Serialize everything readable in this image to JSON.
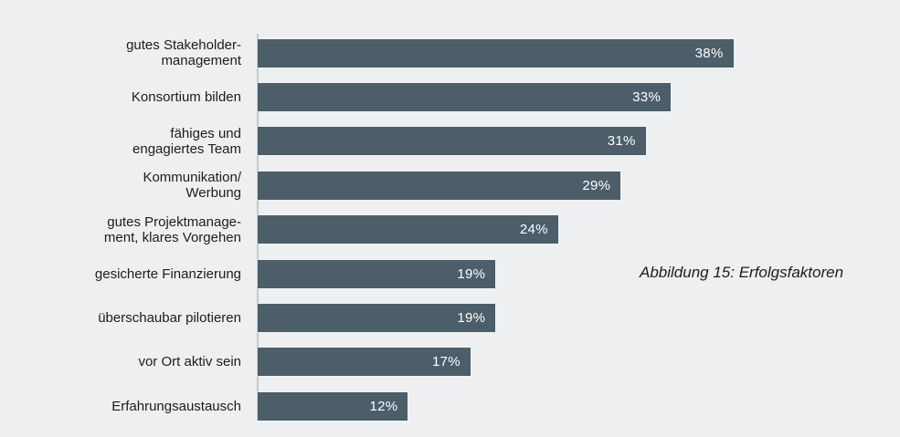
{
  "chart_data": {
    "type": "bar",
    "orientation": "horizontal",
    "caption": "Abbildung 15: Erfolgsfaktoren",
    "categories": [
      "gutes Stakeholder-\nmanagement",
      "Konsortium bilden",
      "fähiges und\nengagiertes Team",
      "Kommunikation/\nWerbung",
      "gutes Projektmanage-\nment, klares Vorgehen",
      "gesicherte Finanzierung",
      "überschaubar pilotieren",
      "vor Ort aktiv sein",
      "Erfahrungsaustausch"
    ],
    "values": [
      38,
      33,
      31,
      29,
      24,
      19,
      19,
      17,
      12
    ],
    "value_labels": [
      "38%",
      "33%",
      "31%",
      "29%",
      "24%",
      "19%",
      "19%",
      "17%",
      "12%"
    ],
    "unit": "%",
    "xlim": [
      0,
      40
    ],
    "grid": false,
    "legend": false,
    "bar_color": "#4b5e69",
    "background_color": "#edeff0",
    "value_label_color": "#ffffff",
    "axis_line_color": "#c5c9cb"
  }
}
